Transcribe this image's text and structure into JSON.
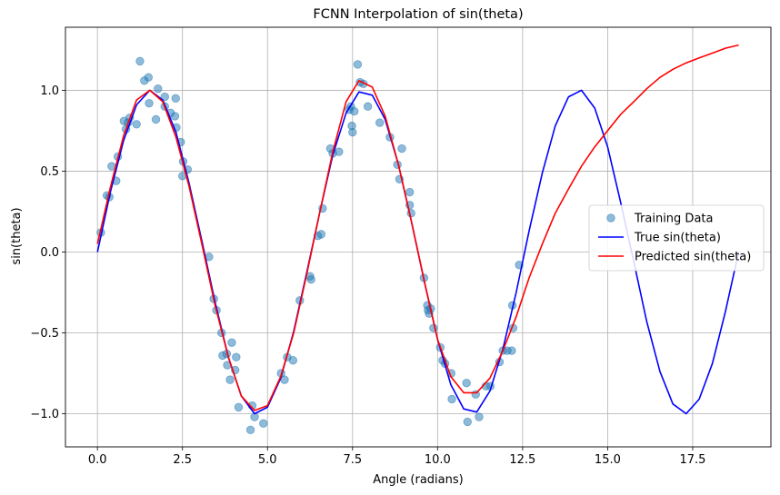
{
  "chart_data": {
    "type": "scatter+line",
    "title": "FCNN Interpolation of sin(theta)",
    "xlabel": "Angle (radians)",
    "ylabel": "sin(theta)",
    "xlim": [
      -0.94,
      19.8
    ],
    "ylim": [
      -1.205,
      1.39
    ],
    "grid": true,
    "legend_position": "center-right",
    "x_ticks": [
      0.0,
      2.5,
      5.0,
      7.5,
      10.0,
      12.5,
      15.0,
      17.5
    ],
    "x_tick_labels": [
      "0.0",
      "2.5",
      "5.0",
      "7.5",
      "10.0",
      "12.5",
      "15.0",
      "17.5"
    ],
    "y_ticks": [
      -1.0,
      -0.5,
      0.0,
      0.5,
      1.0
    ],
    "y_tick_labels": [
      "−1.0",
      "−0.5",
      "0.0",
      "0.5",
      "1.0"
    ],
    "series": [
      {
        "name": "Training Data",
        "kind": "scatter",
        "color": "#1f77b4",
        "points": [
          [
            0.1,
            0.12
          ],
          [
            0.28,
            0.35
          ],
          [
            0.35,
            0.34
          ],
          [
            0.42,
            0.53
          ],
          [
            0.55,
            0.44
          ],
          [
            0.6,
            0.59
          ],
          [
            0.78,
            0.81
          ],
          [
            0.84,
            0.76
          ],
          [
            0.9,
            0.8
          ],
          [
            0.95,
            0.83
          ],
          [
            1.15,
            0.79
          ],
          [
            1.25,
            1.18
          ],
          [
            1.38,
            1.06
          ],
          [
            1.5,
            1.08
          ],
          [
            1.52,
            0.92
          ],
          [
            1.72,
            0.82
          ],
          [
            1.78,
            1.01
          ],
          [
            1.98,
            0.96
          ],
          [
            1.98,
            0.9
          ],
          [
            2.15,
            0.86
          ],
          [
            2.28,
            0.84
          ],
          [
            2.3,
            0.95
          ],
          [
            2.32,
            0.77
          ],
          [
            2.45,
            0.68
          ],
          [
            2.5,
            0.47
          ],
          [
            2.52,
            0.56
          ],
          [
            2.65,
            0.51
          ],
          [
            3.28,
            -0.03
          ],
          [
            3.42,
            -0.29
          ],
          [
            3.5,
            -0.36
          ],
          [
            3.65,
            -0.5
          ],
          [
            3.68,
            -0.64
          ],
          [
            3.8,
            -0.63
          ],
          [
            3.82,
            -0.7
          ],
          [
            3.9,
            -0.79
          ],
          [
            3.95,
            -0.56
          ],
          [
            4.05,
            -0.73
          ],
          [
            4.08,
            -0.65
          ],
          [
            4.15,
            -0.96
          ],
          [
            4.5,
            -1.1
          ],
          [
            4.55,
            -0.95
          ],
          [
            4.62,
            -1.02
          ],
          [
            4.88,
            -1.06
          ],
          [
            5.4,
            -0.75
          ],
          [
            5.5,
            -0.79
          ],
          [
            5.58,
            -0.65
          ],
          [
            5.75,
            -0.67
          ],
          [
            5.95,
            -0.3
          ],
          [
            6.25,
            -0.15
          ],
          [
            6.28,
            -0.17
          ],
          [
            6.48,
            0.1
          ],
          [
            6.58,
            0.11
          ],
          [
            6.62,
            0.27
          ],
          [
            6.85,
            0.64
          ],
          [
            6.92,
            0.61
          ],
          [
            7.1,
            0.62
          ],
          [
            7.4,
            0.88
          ],
          [
            7.45,
            0.9
          ],
          [
            7.48,
            0.78
          ],
          [
            7.5,
            0.74
          ],
          [
            7.55,
            0.87
          ],
          [
            7.65,
            1.16
          ],
          [
            7.72,
            1.05
          ],
          [
            7.82,
            1.04
          ],
          [
            7.95,
            0.9
          ],
          [
            8.3,
            0.8
          ],
          [
            8.6,
            0.71
          ],
          [
            8.82,
            0.54
          ],
          [
            8.88,
            0.45
          ],
          [
            8.95,
            0.64
          ],
          [
            9.18,
            0.37
          ],
          [
            9.18,
            0.29
          ],
          [
            9.22,
            0.24
          ],
          [
            9.6,
            -0.16
          ],
          [
            9.7,
            -0.33
          ],
          [
            9.72,
            -0.36
          ],
          [
            9.75,
            -0.38
          ],
          [
            9.8,
            -0.35
          ],
          [
            9.88,
            -0.47
          ],
          [
            10.08,
            -0.59
          ],
          [
            10.15,
            -0.67
          ],
          [
            10.22,
            -0.69
          ],
          [
            10.4,
            -0.75
          ],
          [
            10.42,
            -0.91
          ],
          [
            10.85,
            -0.81
          ],
          [
            10.88,
            -1.05
          ],
          [
            11.12,
            -0.88
          ],
          [
            11.22,
            -1.02
          ],
          [
            11.42,
            -0.83
          ],
          [
            11.55,
            -0.83
          ],
          [
            11.82,
            -0.68
          ],
          [
            11.92,
            -0.61
          ],
          [
            12.05,
            -0.61
          ],
          [
            12.18,
            -0.61
          ],
          [
            12.2,
            -0.33
          ],
          [
            12.22,
            -0.47
          ],
          [
            12.4,
            -0.08
          ]
        ]
      },
      {
        "name": "True sin(theta)",
        "kind": "line",
        "color": "#0000ff",
        "x": [
          0.0,
          0.38,
          0.77,
          1.15,
          1.54,
          1.92,
          2.31,
          2.69,
          3.08,
          3.46,
          3.85,
          4.23,
          4.62,
          5.0,
          5.39,
          5.77,
          6.15,
          6.54,
          6.92,
          7.31,
          7.69,
          8.08,
          8.46,
          8.85,
          9.23,
          9.62,
          10.0,
          10.39,
          10.77,
          11.15,
          11.54,
          11.92,
          12.31,
          12.69,
          13.08,
          13.46,
          13.85,
          14.23,
          14.62,
          15.0,
          15.38,
          15.77,
          16.15,
          16.54,
          16.92,
          17.31,
          17.69,
          18.08,
          18.46,
          18.85
        ],
        "y": [
          0.0,
          0.37,
          0.69,
          0.91,
          1.0,
          0.94,
          0.74,
          0.43,
          0.06,
          -0.31,
          -0.65,
          -0.89,
          -1.0,
          -0.96,
          -0.78,
          -0.49,
          -0.13,
          0.25,
          0.6,
          0.86,
          0.99,
          0.97,
          0.82,
          0.54,
          0.19,
          -0.19,
          -0.54,
          -0.82,
          -0.97,
          -0.99,
          -0.86,
          -0.6,
          -0.25,
          0.13,
          0.49,
          0.78,
          0.96,
          1.0,
          0.89,
          0.65,
          0.31,
          -0.06,
          -0.43,
          -0.74,
          -0.94,
          -1.0,
          -0.91,
          -0.69,
          -0.37,
          0.0
        ]
      },
      {
        "name": "Predicted sin(theta)",
        "kind": "line",
        "color": "#ff0000",
        "x": [
          0.0,
          0.38,
          0.77,
          1.15,
          1.54,
          1.92,
          2.31,
          2.69,
          3.08,
          3.46,
          3.85,
          4.23,
          4.62,
          5.0,
          5.39,
          5.77,
          6.15,
          6.54,
          6.92,
          7.31,
          7.69,
          8.08,
          8.46,
          8.85,
          9.23,
          9.62,
          10.0,
          10.39,
          10.77,
          11.15,
          11.54,
          11.92,
          12.31,
          12.69,
          13.08,
          13.46,
          13.85,
          14.23,
          14.62,
          15.0,
          15.38,
          15.77,
          16.15,
          16.54,
          16.92,
          17.31,
          17.69,
          18.08,
          18.46,
          18.85
        ],
        "y": [
          0.05,
          0.4,
          0.72,
          0.94,
          1.0,
          0.93,
          0.71,
          0.41,
          0.04,
          -0.33,
          -0.65,
          -0.89,
          -0.98,
          -0.95,
          -0.77,
          -0.5,
          -0.14,
          0.25,
          0.62,
          0.93,
          1.06,
          1.02,
          0.84,
          0.54,
          0.19,
          -0.19,
          -0.54,
          -0.77,
          -0.87,
          -0.87,
          -0.78,
          -0.61,
          -0.4,
          -0.16,
          0.05,
          0.24,
          0.39,
          0.53,
          0.65,
          0.75,
          0.85,
          0.93,
          1.01,
          1.08,
          1.13,
          1.17,
          1.2,
          1.23,
          1.26,
          1.28
        ]
      }
    ]
  }
}
